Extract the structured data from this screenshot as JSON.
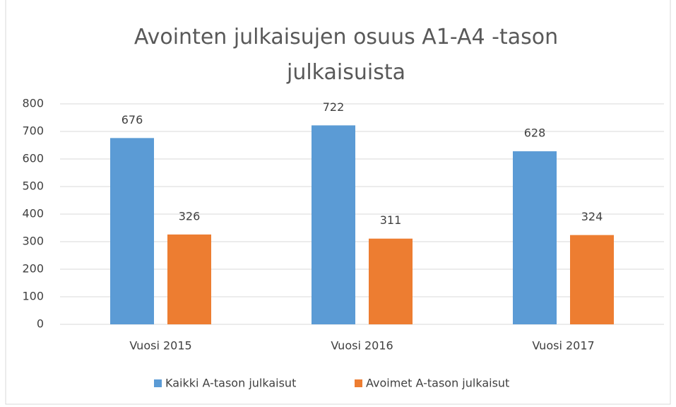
{
  "chart_data": {
    "type": "bar",
    "title": "Avointen julkaisujen osuus A1-A4 -tason julkaisuista",
    "categories": [
      "Vuosi 2015",
      "Vuosi 2016",
      "Vuosi 2017"
    ],
    "series": [
      {
        "name": "Kaikki A-tason julkaisut",
        "color": "#5b9bd5",
        "values": [
          676,
          722,
          628
        ]
      },
      {
        "name": "Avoimet A-tason julkaisut",
        "color": "#ed7d31",
        "values": [
          326,
          311,
          324
        ]
      }
    ],
    "ylim": [
      0,
      800
    ],
    "yticks": [
      0,
      100,
      200,
      300,
      400,
      500,
      600,
      700,
      800
    ],
    "grid": true,
    "legend": "bottom"
  }
}
